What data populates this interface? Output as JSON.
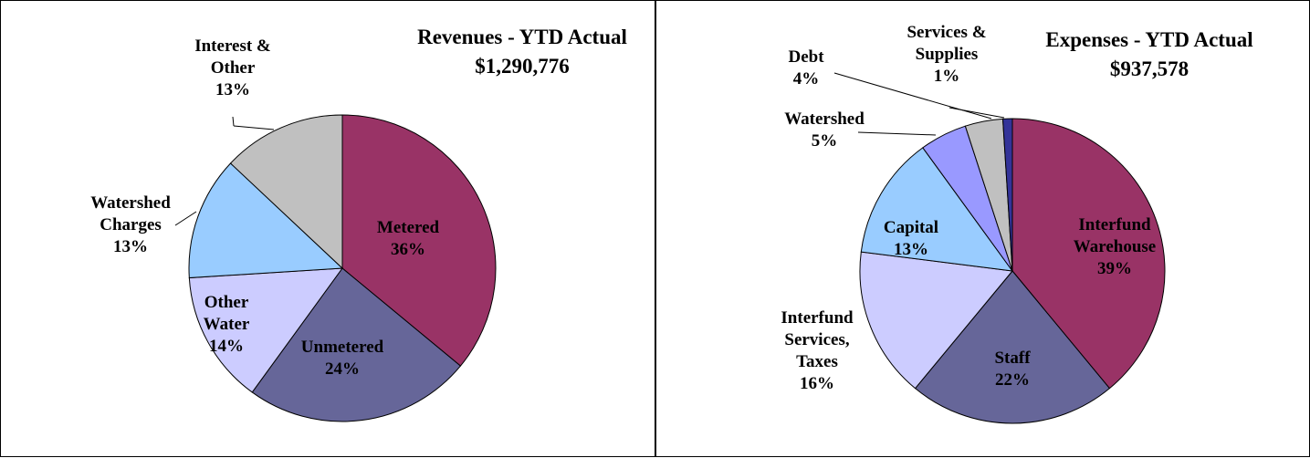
{
  "chart_data": [
    {
      "type": "pie",
      "title": "Revenues - YTD Actual",
      "subtitle": "$1,290,776",
      "categories": [
        "Metered",
        "Unmetered",
        "Other Water",
        "Watershed Charges",
        "Interest & Other"
      ],
      "values": [
        36,
        24,
        14,
        13,
        13
      ],
      "value_labels": [
        "36%",
        "24%",
        "14%",
        "13%",
        "13%"
      ],
      "colors": [
        "#993366",
        "#666699",
        "#ccccff",
        "#99ccff",
        "#c0c0c0"
      ]
    },
    {
      "type": "pie",
      "title": "Expenses - YTD Actual",
      "subtitle": "$937,578",
      "categories": [
        "Interfund Warehouse",
        "Staff",
        "Interfund Services, Taxes",
        "Capital",
        "Watershed",
        "Debt",
        "Services & Supplies"
      ],
      "values": [
        39,
        22,
        16,
        13,
        5,
        4,
        1
      ],
      "value_labels": [
        "39%",
        "22%",
        "16%",
        "13%",
        "5%",
        "4%",
        "1%"
      ],
      "colors": [
        "#993366",
        "#666699",
        "#ccccff",
        "#99ccff",
        "#9999ff",
        "#c0c0c0",
        "#333399"
      ]
    }
  ]
}
